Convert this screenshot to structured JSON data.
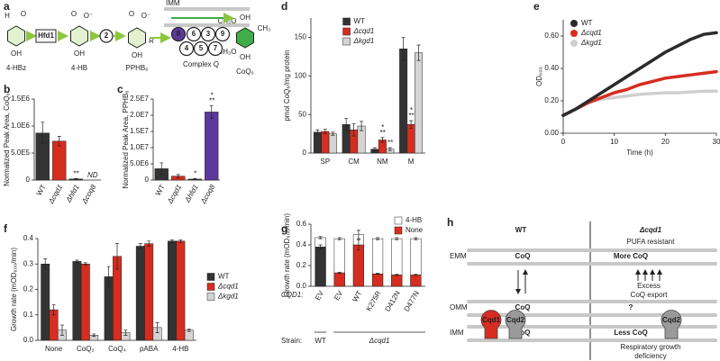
{
  "pathway": {
    "panel": "a",
    "compounds": [
      "4-HBz",
      "4-HB",
      "PPHB₆",
      "CoQ₆"
    ],
    "enzyme": "Hfd1",
    "step": "2",
    "membrane": "IMM",
    "complex": "Complex Q",
    "complex_members": [
      "8",
      "6",
      "3",
      "9",
      "4",
      "5",
      "7"
    ],
    "groups_4hbz": [
      "O",
      "H",
      "OH"
    ],
    "groups_4hb": [
      "O",
      "O⁻",
      "OH"
    ],
    "groups_pphb": [
      "O",
      "O⁻",
      "OH",
      "R"
    ],
    "groups_coq": [
      "CH₃O",
      "OH",
      "CH₃",
      "CH₃O",
      "OH"
    ]
  },
  "model": {
    "panel": "h",
    "columns": [
      "WT",
      "Δcqd1"
    ],
    "phenotype": "PUFA resistant",
    "membranes": [
      "EMM",
      "OMM",
      "IMM"
    ],
    "wt_coq": [
      "CoQ",
      "CoQ",
      "CoQ"
    ],
    "mutant_coq": [
      "More CoQ",
      "?",
      "Less CoQ"
    ],
    "export": [
      "Excess",
      "CoQ export"
    ],
    "proteins": [
      "Cqd1",
      "Cqd2",
      "Cqd2"
    ],
    "deficiency": [
      "Respiratory growth",
      "deficiency"
    ]
  },
  "chart_data": [
    {
      "panel": "b",
      "type": "bar",
      "ylabel": "Normalized Peak Area, CoQ₆",
      "categories": [
        "WT",
        "Δcqd1",
        "Δhfd1",
        "Δcoq8"
      ],
      "values": [
        870000,
        720000,
        20000,
        0
      ],
      "errors": [
        200000,
        90000,
        10000,
        0
      ],
      "colors": [
        "#333333",
        "#d62d20",
        "#333333",
        "#5b3a9b"
      ],
      "significance": [
        null,
        null,
        [
          "**"
        ],
        [
          "ND"
        ]
      ],
      "ylim": [
        0,
        1500000
      ],
      "yticks": [
        0,
        {
          "value": 500000,
          "label": "5.0E5"
        },
        {
          "value": 1000000,
          "label": "1.0E6"
        },
        {
          "value": 1500000,
          "label": "1.5E6"
        }
      ]
    },
    {
      "panel": "c",
      "type": "bar",
      "ylabel": "Normalized Peak Area, PPHB₆",
      "categories": [
        "WT",
        "Δcqd1",
        "Δhfd1",
        "Δcoq8"
      ],
      "values": [
        3500000,
        1200000,
        300000,
        21000000
      ],
      "errors": [
        1800000,
        500000,
        200000,
        2000000
      ],
      "colors": [
        "#333333",
        "#d62d20",
        "#333333",
        "#5b3a9b"
      ],
      "significance": [
        null,
        null,
        [
          "*"
        ],
        [
          "*",
          "**"
        ]
      ],
      "ylim": [
        0,
        25000000
      ],
      "yticks": [
        0,
        {
          "value": 5000000,
          "label": "5.0E6"
        },
        {
          "value": 10000000,
          "label": "1.0E7"
        },
        {
          "value": 15000000,
          "label": "1.5E7"
        },
        {
          "value": 20000000,
          "label": "2.0E7"
        },
        {
          "value": 25000000,
          "label": "2.5E7"
        }
      ]
    },
    {
      "panel": "d",
      "type": "bar",
      "ylabel": "pmol CoQ₆/mg protein",
      "categories": [
        "SP",
        "CM",
        "NM",
        "M"
      ],
      "legend": "top",
      "series": [
        {
          "name": "WT",
          "color": "#333333",
          "values": [
            27,
            37,
            5,
            135
          ],
          "errors": [
            3,
            8,
            2,
            15
          ]
        },
        {
          "name": "Δcqd1",
          "color": "#d62d20",
          "values": [
            28,
            30,
            17,
            37
          ],
          "errors": [
            3,
            8,
            3,
            5
          ],
          "significance": [
            null,
            null,
            [
              "*",
              "**"
            ],
            [
              "*",
              "**"
            ]
          ]
        },
        {
          "name": "Δkgd1",
          "color": "#d4d4d4",
          "values": [
            25,
            35,
            5,
            130
          ],
          "errors": [
            2,
            6,
            2,
            10
          ],
          "significance": [
            null,
            null,
            [
              "**"
            ],
            null
          ]
        }
      ],
      "ylim": [
        0,
        175
      ],
      "yticks": [
        0,
        50,
        100,
        150
      ]
    },
    {
      "panel": "e",
      "type": "line",
      "ylabel": "OD₆₀₀",
      "xlabel": "Time (h)",
      "legend": "top-left",
      "x": [
        0,
        2.5,
        5,
        7.5,
        10,
        12.5,
        15,
        17.5,
        20,
        22.5,
        25,
        27.5,
        30
      ],
      "series": [
        {
          "name": "WT",
          "color": "#2b2b2b",
          "values": [
            0.11,
            0.15,
            0.2,
            0.25,
            0.3,
            0.35,
            0.4,
            0.45,
            0.5,
            0.54,
            0.58,
            0.61,
            0.62
          ]
        },
        {
          "name": "Δcqd1",
          "color": "#d62d20",
          "values": [
            0.11,
            0.15,
            0.19,
            0.22,
            0.25,
            0.27,
            0.3,
            0.32,
            0.34,
            0.35,
            0.36,
            0.37,
            0.38
          ]
        },
        {
          "name": "Δkgd1",
          "color": "#cfcfcf",
          "values": [
            0.11,
            0.15,
            0.19,
            0.21,
            0.22,
            0.23,
            0.24,
            0.245,
            0.25,
            0.25,
            0.255,
            0.26,
            0.26
          ]
        }
      ],
      "xlim": [
        0,
        30
      ],
      "xticks": [
        0,
        10,
        20,
        30
      ],
      "ylim": [
        0,
        0.7
      ],
      "yticks": [
        {
          "value": 0,
          "label": "0.00"
        },
        {
          "value": 0.2,
          "label": "0.20"
        },
        {
          "value": 0.4,
          "label": "0.40"
        },
        {
          "value": 0.6,
          "label": "0.60"
        }
      ]
    },
    {
      "panel": "f",
      "type": "bar",
      "ylabel": "Growth rate (mOD₆₀₀/min)",
      "categories": [
        "None",
        "CoQ₂",
        "CoQ₄",
        "pABA",
        "4-HB"
      ],
      "legend": "right",
      "series": [
        {
          "name": "WT",
          "color": "#333333",
          "values": [
            0.3,
            0.31,
            0.25,
            0.37,
            0.39
          ],
          "errors": [
            0.02,
            0.005,
            0.04,
            0.01,
            0.005
          ]
        },
        {
          "name": "Δcqd1",
          "color": "#d62d20",
          "values": [
            0.12,
            0.3,
            0.33,
            0.38,
            0.39
          ],
          "errors": [
            0.02,
            0.005,
            0.05,
            0.01,
            0.005
          ]
        },
        {
          "name": "Δkgd1",
          "color": "#d4d4d4",
          "values": [
            0.04,
            0.02,
            0.03,
            0.05,
            0.04
          ],
          "errors": [
            0.02,
            0.005,
            0.01,
            0.02,
            0.005
          ]
        }
      ],
      "ylim": [
        0,
        0.4
      ],
      "yticks": [
        {
          "value": 0,
          "label": "0.0"
        },
        0.1,
        0.2,
        0.3,
        0.4
      ]
    },
    {
      "panel": "g",
      "type": "bar",
      "overlay": true,
      "ylabel": "Growth rate (mOD₆₀₀/min)",
      "categories": [
        "EV",
        "EV",
        "WT",
        "K275R",
        "D412N",
        "D477N"
      ],
      "legend": "top-right",
      "category_row_label": "CQD1:",
      "strain_row_label": "Strain:",
      "strains": [
        "WT",
        "Δcqd1"
      ],
      "series": [
        {
          "name": "4-HB",
          "color": "#ffffff",
          "values": [
            0.47,
            0.46,
            0.5,
            0.46,
            0.46,
            0.46
          ],
          "errors": [
            0.01,
            0.01,
            0.04,
            0.01,
            0.01,
            0.01
          ]
        },
        {
          "name": "None",
          "color": "#d62d20",
          "colors": [
            "#333333",
            "#d62d20",
            "#d62d20",
            "#d62d20",
            "#d62d20",
            "#d62d20"
          ],
          "values": [
            0.38,
            0.13,
            0.4,
            0.12,
            0.11,
            0.11
          ],
          "errors": [
            0.02,
            0.005,
            0.05,
            0.005,
            0.005,
            0.005
          ]
        }
      ],
      "ylim": [
        0,
        0.6
      ],
      "yticks": [
        {
          "value": 0,
          "label": "0.0"
        },
        0.2,
        0.4,
        0.6
      ]
    }
  ]
}
